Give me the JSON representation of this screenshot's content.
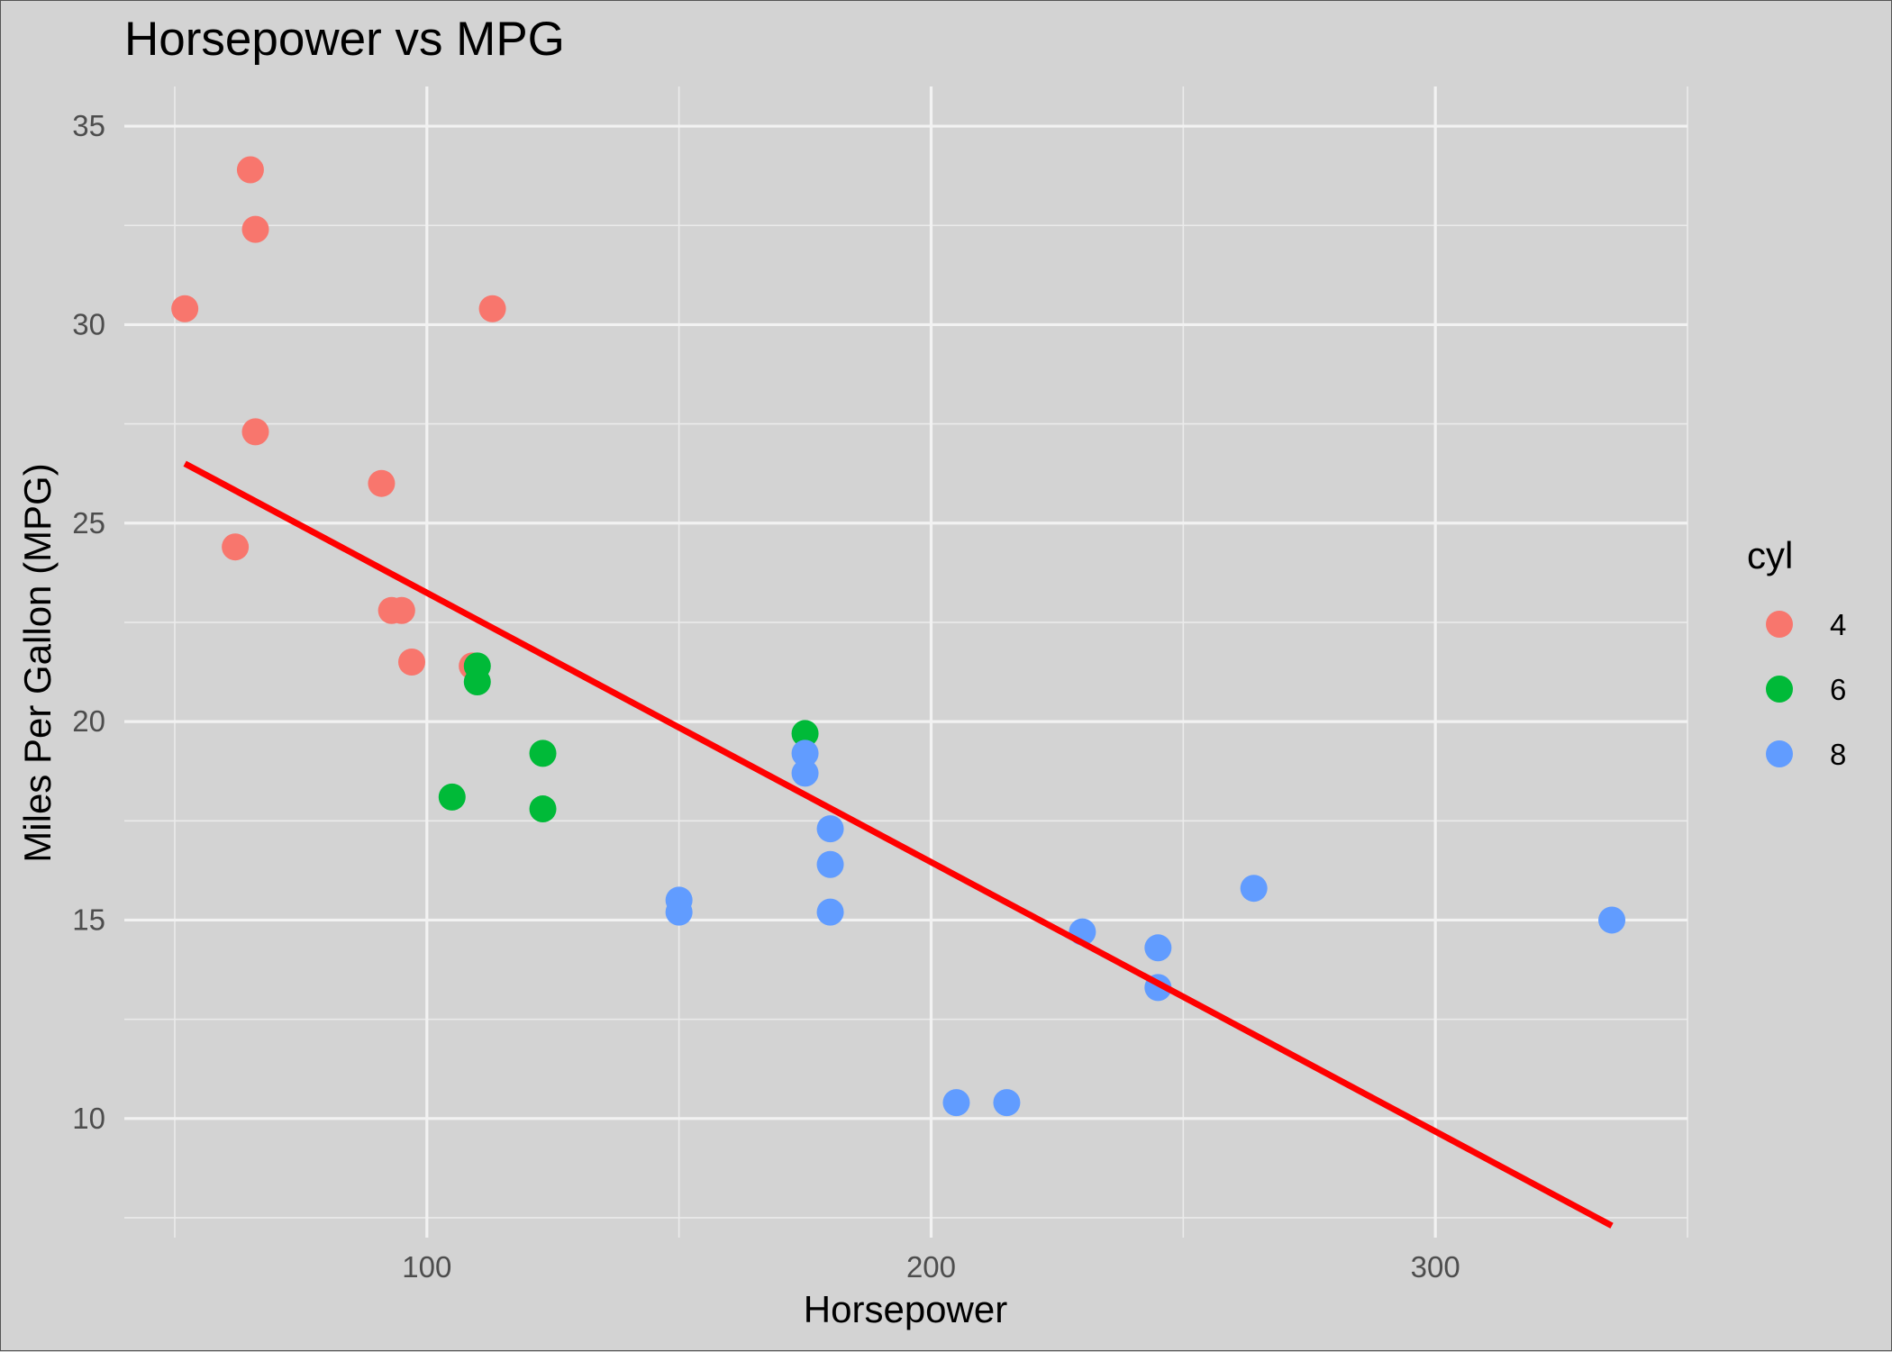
{
  "chart_data": {
    "type": "scatter",
    "title": "Horsepower vs MPG",
    "xlabel": "Horsepower",
    "ylabel": "Miles Per Gallon (MPG)",
    "xlim": [
      40,
      350
    ],
    "ylim": [
      7,
      36
    ],
    "x_ticks": [
      100,
      200,
      300
    ],
    "y_ticks": [
      10,
      15,
      20,
      25,
      30,
      35
    ],
    "grid": true,
    "legend": {
      "title": "cyl",
      "placement": "right",
      "entries": [
        {
          "label": "4",
          "color": "#F8766D"
        },
        {
          "label": "6",
          "color": "#00BA38"
        },
        {
          "label": "8",
          "color": "#619CFF"
        }
      ]
    },
    "series": [
      {
        "name": "4",
        "color": "#F8766D",
        "points": [
          {
            "x": 52,
            "y": 30.4
          },
          {
            "x": 65,
            "y": 33.9
          },
          {
            "x": 66,
            "y": 32.4
          },
          {
            "x": 66,
            "y": 27.3
          },
          {
            "x": 62,
            "y": 24.4
          },
          {
            "x": 91,
            "y": 26.0
          },
          {
            "x": 93,
            "y": 22.8
          },
          {
            "x": 95,
            "y": 22.8
          },
          {
            "x": 97,
            "y": 21.5
          },
          {
            "x": 109,
            "y": 21.4
          },
          {
            "x": 113,
            "y": 30.4
          }
        ]
      },
      {
        "name": "6",
        "color": "#00BA38",
        "points": [
          {
            "x": 110,
            "y": 21.0
          },
          {
            "x": 110,
            "y": 21.4
          },
          {
            "x": 105,
            "y": 18.1
          },
          {
            "x": 123,
            "y": 19.2
          },
          {
            "x": 123,
            "y": 17.8
          },
          {
            "x": 175,
            "y": 19.7
          }
        ]
      },
      {
        "name": "8",
        "color": "#619CFF",
        "points": [
          {
            "x": 150,
            "y": 15.5
          },
          {
            "x": 150,
            "y": 15.2
          },
          {
            "x": 175,
            "y": 19.2
          },
          {
            "x": 175,
            "y": 18.7
          },
          {
            "x": 180,
            "y": 17.3
          },
          {
            "x": 180,
            "y": 16.4
          },
          {
            "x": 180,
            "y": 15.2
          },
          {
            "x": 205,
            "y": 10.4
          },
          {
            "x": 215,
            "y": 10.4
          },
          {
            "x": 230,
            "y": 14.7
          },
          {
            "x": 245,
            "y": 14.3
          },
          {
            "x": 245,
            "y": 13.3
          },
          {
            "x": 264,
            "y": 15.8
          },
          {
            "x": 335,
            "y": 15.0
          }
        ]
      }
    ],
    "trend_line": {
      "color": "#FF0000",
      "points": [
        {
          "x": 52,
          "y": 26.5
        },
        {
          "x": 335,
          "y": 7.3
        }
      ]
    }
  }
}
